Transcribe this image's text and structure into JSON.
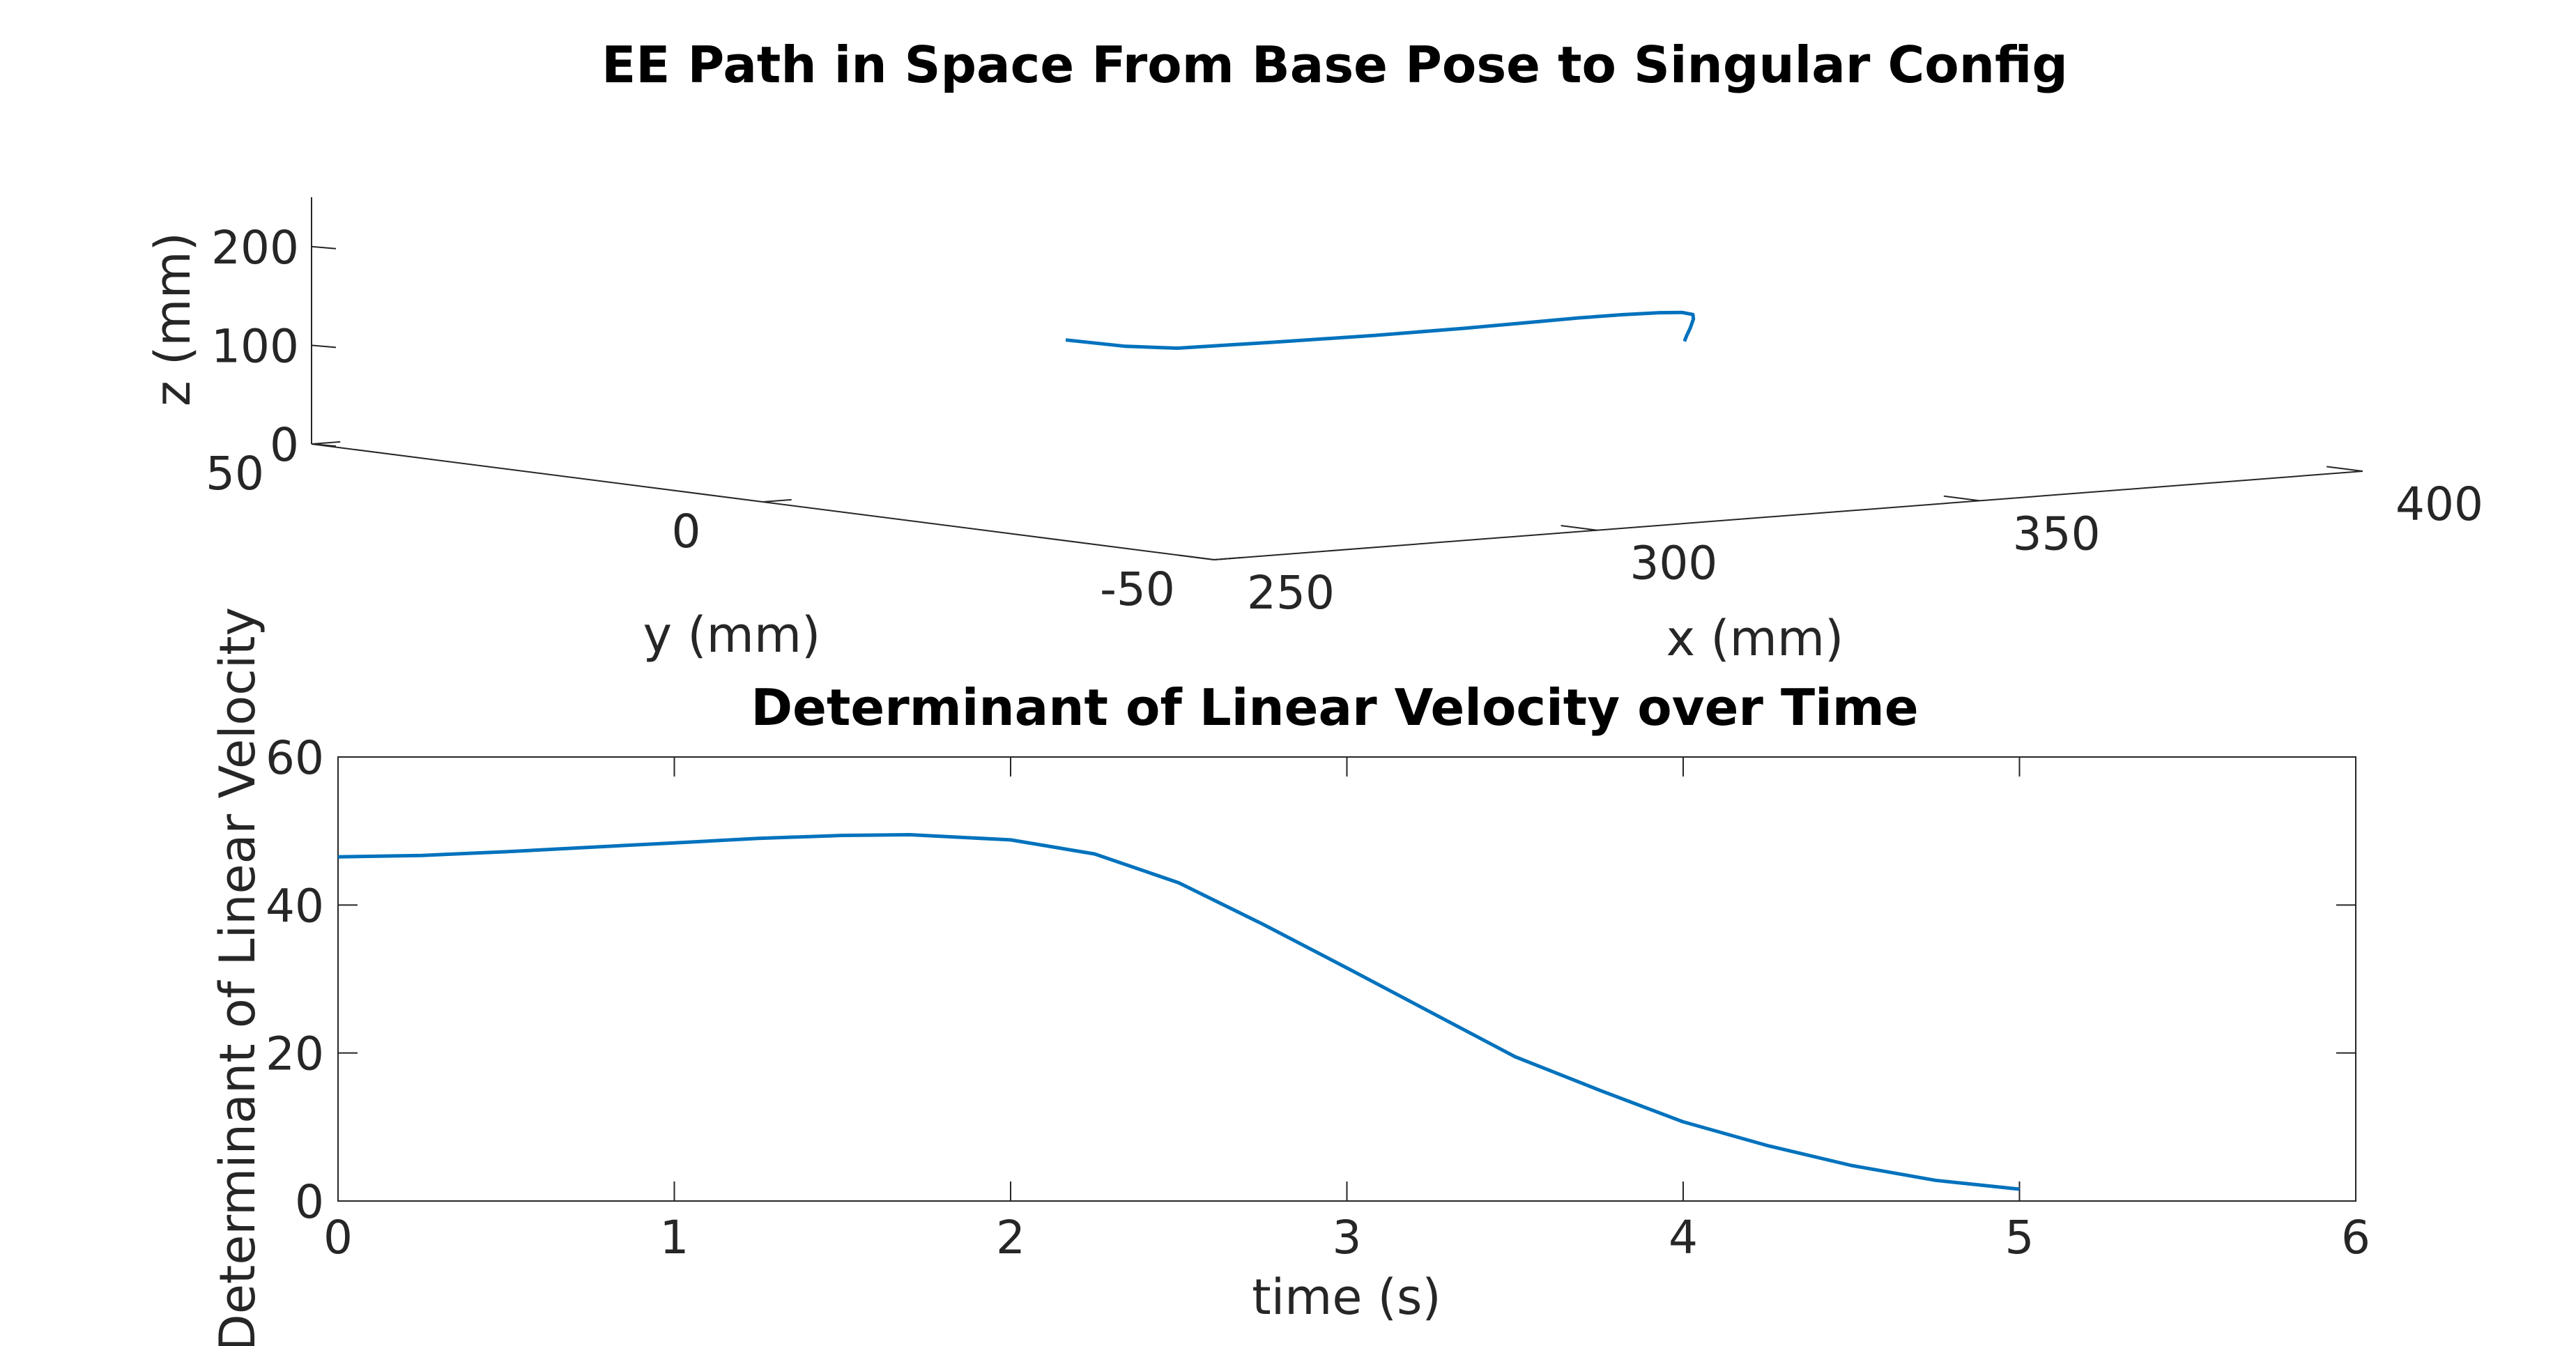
{
  "chart_data": [
    {
      "type": "line",
      "projection": "3d",
      "title": "EE Path in Space From Base Pose to Singular Config",
      "xlabel": "x (mm)",
      "ylabel": "y (mm)",
      "zlabel": "z (mm)",
      "xlim": [
        250,
        400
      ],
      "ylim": [
        -50,
        50
      ],
      "zlim": [
        0,
        250
      ],
      "xticks": [
        250,
        300,
        350,
        400
      ],
      "yticks": [
        -50,
        0,
        50
      ],
      "zticks": [
        0,
        100,
        200
      ],
      "xtick_labels": [
        "250",
        "300",
        "350",
        "400"
      ],
      "ytick_labels": [
        "-50",
        "0",
        "50"
      ],
      "ztick_labels": [
        "0",
        "100",
        "200"
      ],
      "grid": false,
      "series": [
        {
          "color": "#0072bd",
          "x": [
            276.0,
            283.1,
            289.3,
            301.5,
            313.6,
            325.3,
            333.6,
            342.0,
            349.5,
            356.8,
            362.6,
            367.8,
            370.7,
            372.3,
            373.1,
            373.3
          ],
          "y": [
            -11.5,
            -12.1,
            -12.6,
            -13.4,
            -13.9,
            -13.8,
            -13.4,
            -12.4,
            -10.9,
            -8.7,
            -6.3,
            -3.1,
            -0.7,
            1.0,
            2.1,
            2.5
          ],
          "z": [
            162,
            152,
            147,
            147,
            147,
            147,
            147,
            146,
            143,
            138,
            132,
            123,
            114,
            102,
            92,
            86
          ]
        }
      ]
    },
    {
      "type": "line",
      "title": "Determinant of Linear Velocity over Time",
      "xlabel": "time (s)",
      "ylabel": "Determinant of Linear  Velocity",
      "xlim": [
        0,
        6
      ],
      "ylim": [
        0,
        60
      ],
      "xticks": [
        0,
        1,
        2,
        3,
        4,
        5,
        6
      ],
      "yticks": [
        0,
        20,
        40,
        60
      ],
      "xtick_labels": [
        "0",
        "1",
        "2",
        "3",
        "4",
        "5",
        "6"
      ],
      "ytick_labels": [
        "0",
        "20",
        "40",
        "60"
      ],
      "grid": false,
      "series": [
        {
          "color": "#0072bd",
          "x": [
            0,
            0.25,
            0.5,
            0.75,
            1.0,
            1.25,
            1.5,
            1.7,
            2.0,
            2.25,
            2.5,
            2.75,
            3.0,
            3.25,
            3.5,
            3.75,
            4.0,
            4.25,
            4.5,
            4.75,
            5.0
          ],
          "y": [
            46.5,
            46.7,
            47.2,
            47.8,
            48.4,
            49.0,
            49.4,
            49.5,
            48.8,
            46.9,
            43.0,
            37.4,
            31.5,
            25.5,
            19.5,
            15.0,
            10.7,
            7.5,
            4.8,
            2.8,
            1.6
          ]
        }
      ]
    }
  ]
}
